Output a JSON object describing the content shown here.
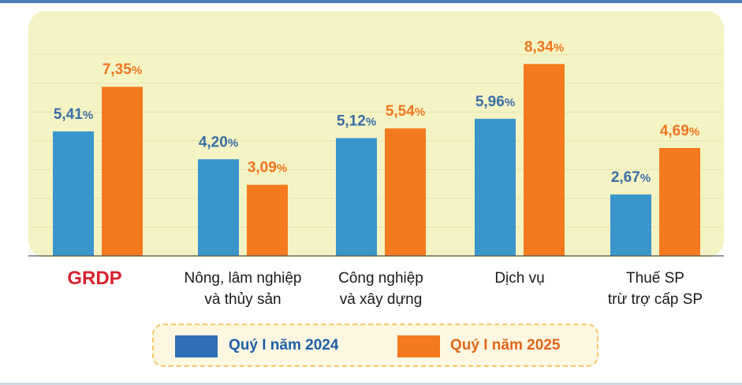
{
  "chart_data": {
    "type": "bar",
    "categories": [
      [
        "GRDP"
      ],
      [
        "Nông, lâm nghiệp",
        "và thủy sản"
      ],
      [
        "Công nghiệp",
        "và xây dựng"
      ],
      [
        "Dịch vụ"
      ],
      [
        "Thuế SP",
        "trừ trợ cấp SP"
      ]
    ],
    "series": [
      {
        "name": "Quý I năm 2024",
        "color": "#3a95cb",
        "values": [
          5.41,
          4.2,
          5.12,
          5.96,
          2.67
        ],
        "labels": [
          "5,41",
          "4,20",
          "5,12",
          "5,96",
          "2,67"
        ],
        "label_color": "#3a6ea5"
      },
      {
        "name": "Quý I năm 2025",
        "color": "#f57a1f",
        "values": [
          7.35,
          3.09,
          5.54,
          8.34,
          4.69
        ],
        "labels": [
          "7,35",
          "3,09",
          "5,54",
          "8,34",
          "4,69"
        ],
        "label_color": "#f07620"
      }
    ],
    "value_suffix": "%",
    "ylim": [
      0,
      9
    ],
    "grid": true,
    "legend_position": "bottom",
    "plot_background": "#f4f3c4",
    "highlight_category_color": "#d7242f",
    "legend_swatch_colors": [
      "#2f6fb7",
      "#f57a1f"
    ],
    "legend_text_color": [
      "#1f5fa8",
      "#e0661a"
    ]
  }
}
